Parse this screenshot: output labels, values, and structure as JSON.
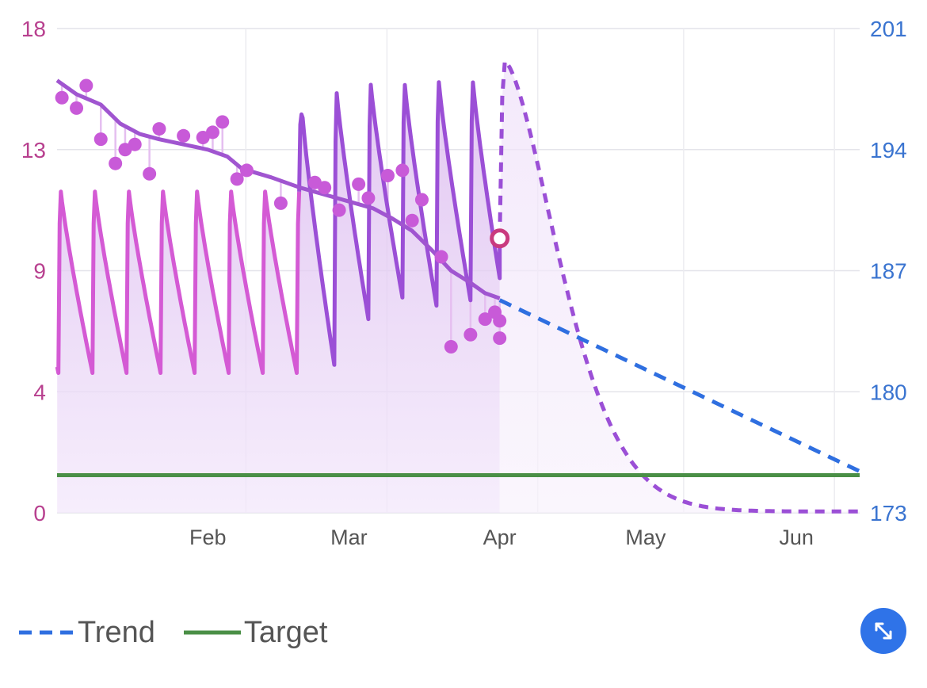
{
  "chart_data": {
    "type": "line",
    "x_axis": {
      "ticks": [
        "Feb",
        "Mar",
        "Apr",
        "May",
        "Jun"
      ],
      "range": [
        "2024-01-01",
        "2024-06-14"
      ]
    },
    "y_left": {
      "ticks": [
        "0",
        "4",
        "9",
        "13",
        "18"
      ],
      "range": [
        0,
        18
      ]
    },
    "y_right": {
      "ticks": [
        "173",
        "180",
        "187",
        "194",
        "201"
      ],
      "range": [
        173,
        201
      ]
    },
    "level_curve": {
      "axis": "left",
      "dose_peak_every_days": 7,
      "phase_1": {
        "from": "2024-01-01",
        "to": "2024-02-20",
        "peak": 12.1,
        "trough": 5.2,
        "color": "#d45ad4"
      },
      "phase_2": {
        "from": "2024-02-20",
        "to": "2024-04-01",
        "peaks": [
          14.9,
          15.8,
          16.1,
          16.1,
          16.2,
          16.2
        ],
        "troughs": [
          5.5,
          7.2,
          8.0,
          7.7,
          7.9,
          7.6
        ],
        "color": "#9b4fd6"
      },
      "projection": {
        "from": "2024-04-01",
        "to": "2024-06-14",
        "peak": 16.8,
        "end": 0.05,
        "style": "dashed",
        "color": "#9b4fd6"
      },
      "current_marker": {
        "date": "2024-04-01",
        "value": 10.2,
        "color": "#c93a7e"
      }
    },
    "weight_points": {
      "axis": "right",
      "values": [
        [
          "2024-01-02",
          197.0
        ],
        [
          "2024-01-05",
          196.4
        ],
        [
          "2024-01-07",
          197.7
        ],
        [
          "2024-01-10",
          194.6
        ],
        [
          "2024-01-13",
          193.2
        ],
        [
          "2024-01-15",
          194.0
        ],
        [
          "2024-01-17",
          194.3
        ],
        [
          "2024-01-20",
          192.6
        ],
        [
          "2024-01-22",
          195.2
        ],
        [
          "2024-01-27",
          194.8
        ],
        [
          "2024-01-31",
          194.7
        ],
        [
          "2024-02-02",
          195.0
        ],
        [
          "2024-02-04",
          195.6
        ],
        [
          "2024-02-07",
          192.3
        ],
        [
          "2024-02-09",
          192.8
        ],
        [
          "2024-02-16",
          190.9
        ],
        [
          "2024-02-23",
          192.1
        ],
        [
          "2024-02-25",
          191.8
        ],
        [
          "2024-02-28",
          190.5
        ],
        [
          "2024-03-03",
          192.0
        ],
        [
          "2024-03-05",
          191.2
        ],
        [
          "2024-03-09",
          192.5
        ],
        [
          "2024-03-12",
          192.8
        ],
        [
          "2024-03-14",
          189.9
        ],
        [
          "2024-03-16",
          191.1
        ],
        [
          "2024-03-20",
          187.8
        ],
        [
          "2024-03-22",
          182.6
        ],
        [
          "2024-03-26",
          183.3
        ],
        [
          "2024-03-29",
          184.2
        ],
        [
          "2024-04-01",
          183.1
        ],
        [
          "2024-03-31",
          184.6
        ],
        [
          "2024-04-01",
          184.1
        ]
      ],
      "color": "#c85ad8"
    },
    "weight_moving_avg": {
      "axis": "right",
      "points": [
        [
          "2024-01-01",
          198.0
        ],
        [
          "2024-01-05",
          197.2
        ],
        [
          "2024-01-10",
          196.6
        ],
        [
          "2024-01-14",
          195.5
        ],
        [
          "2024-01-18",
          194.9
        ],
        [
          "2024-01-22",
          194.6
        ],
        [
          "2024-01-27",
          194.3
        ],
        [
          "2024-02-01",
          194.0
        ],
        [
          "2024-02-05",
          193.6
        ],
        [
          "2024-02-08",
          192.9
        ],
        [
          "2024-02-14",
          192.4
        ],
        [
          "2024-02-20",
          191.8
        ],
        [
          "2024-02-25",
          191.4
        ],
        [
          "2024-03-01",
          191.0
        ],
        [
          "2024-03-06",
          190.6
        ],
        [
          "2024-03-10",
          190.0
        ],
        [
          "2024-03-14",
          189.3
        ],
        [
          "2024-03-18",
          188.2
        ],
        [
          "2024-03-22",
          187.0
        ],
        [
          "2024-03-26",
          186.3
        ],
        [
          "2024-03-29",
          185.7
        ],
        [
          "2024-04-01",
          185.4
        ]
      ],
      "color": "#a055d0"
    },
    "series": [
      {
        "name": "Trend",
        "axis": "right",
        "style": "dashed",
        "color": "#2f6fe0",
        "points": [
          [
            "2024-04-01",
            185.3
          ],
          [
            "2024-06-14",
            175.4
          ]
        ]
      },
      {
        "name": "Target",
        "axis": "left",
        "style": "solid",
        "color": "#4a8f46",
        "value": 1.4
      }
    ],
    "grid": true,
    "legend": {
      "placement": "bottom-left"
    }
  },
  "controls": {
    "expand_icon": "expand-arrows-icon",
    "button_color": "#2f73e8"
  }
}
